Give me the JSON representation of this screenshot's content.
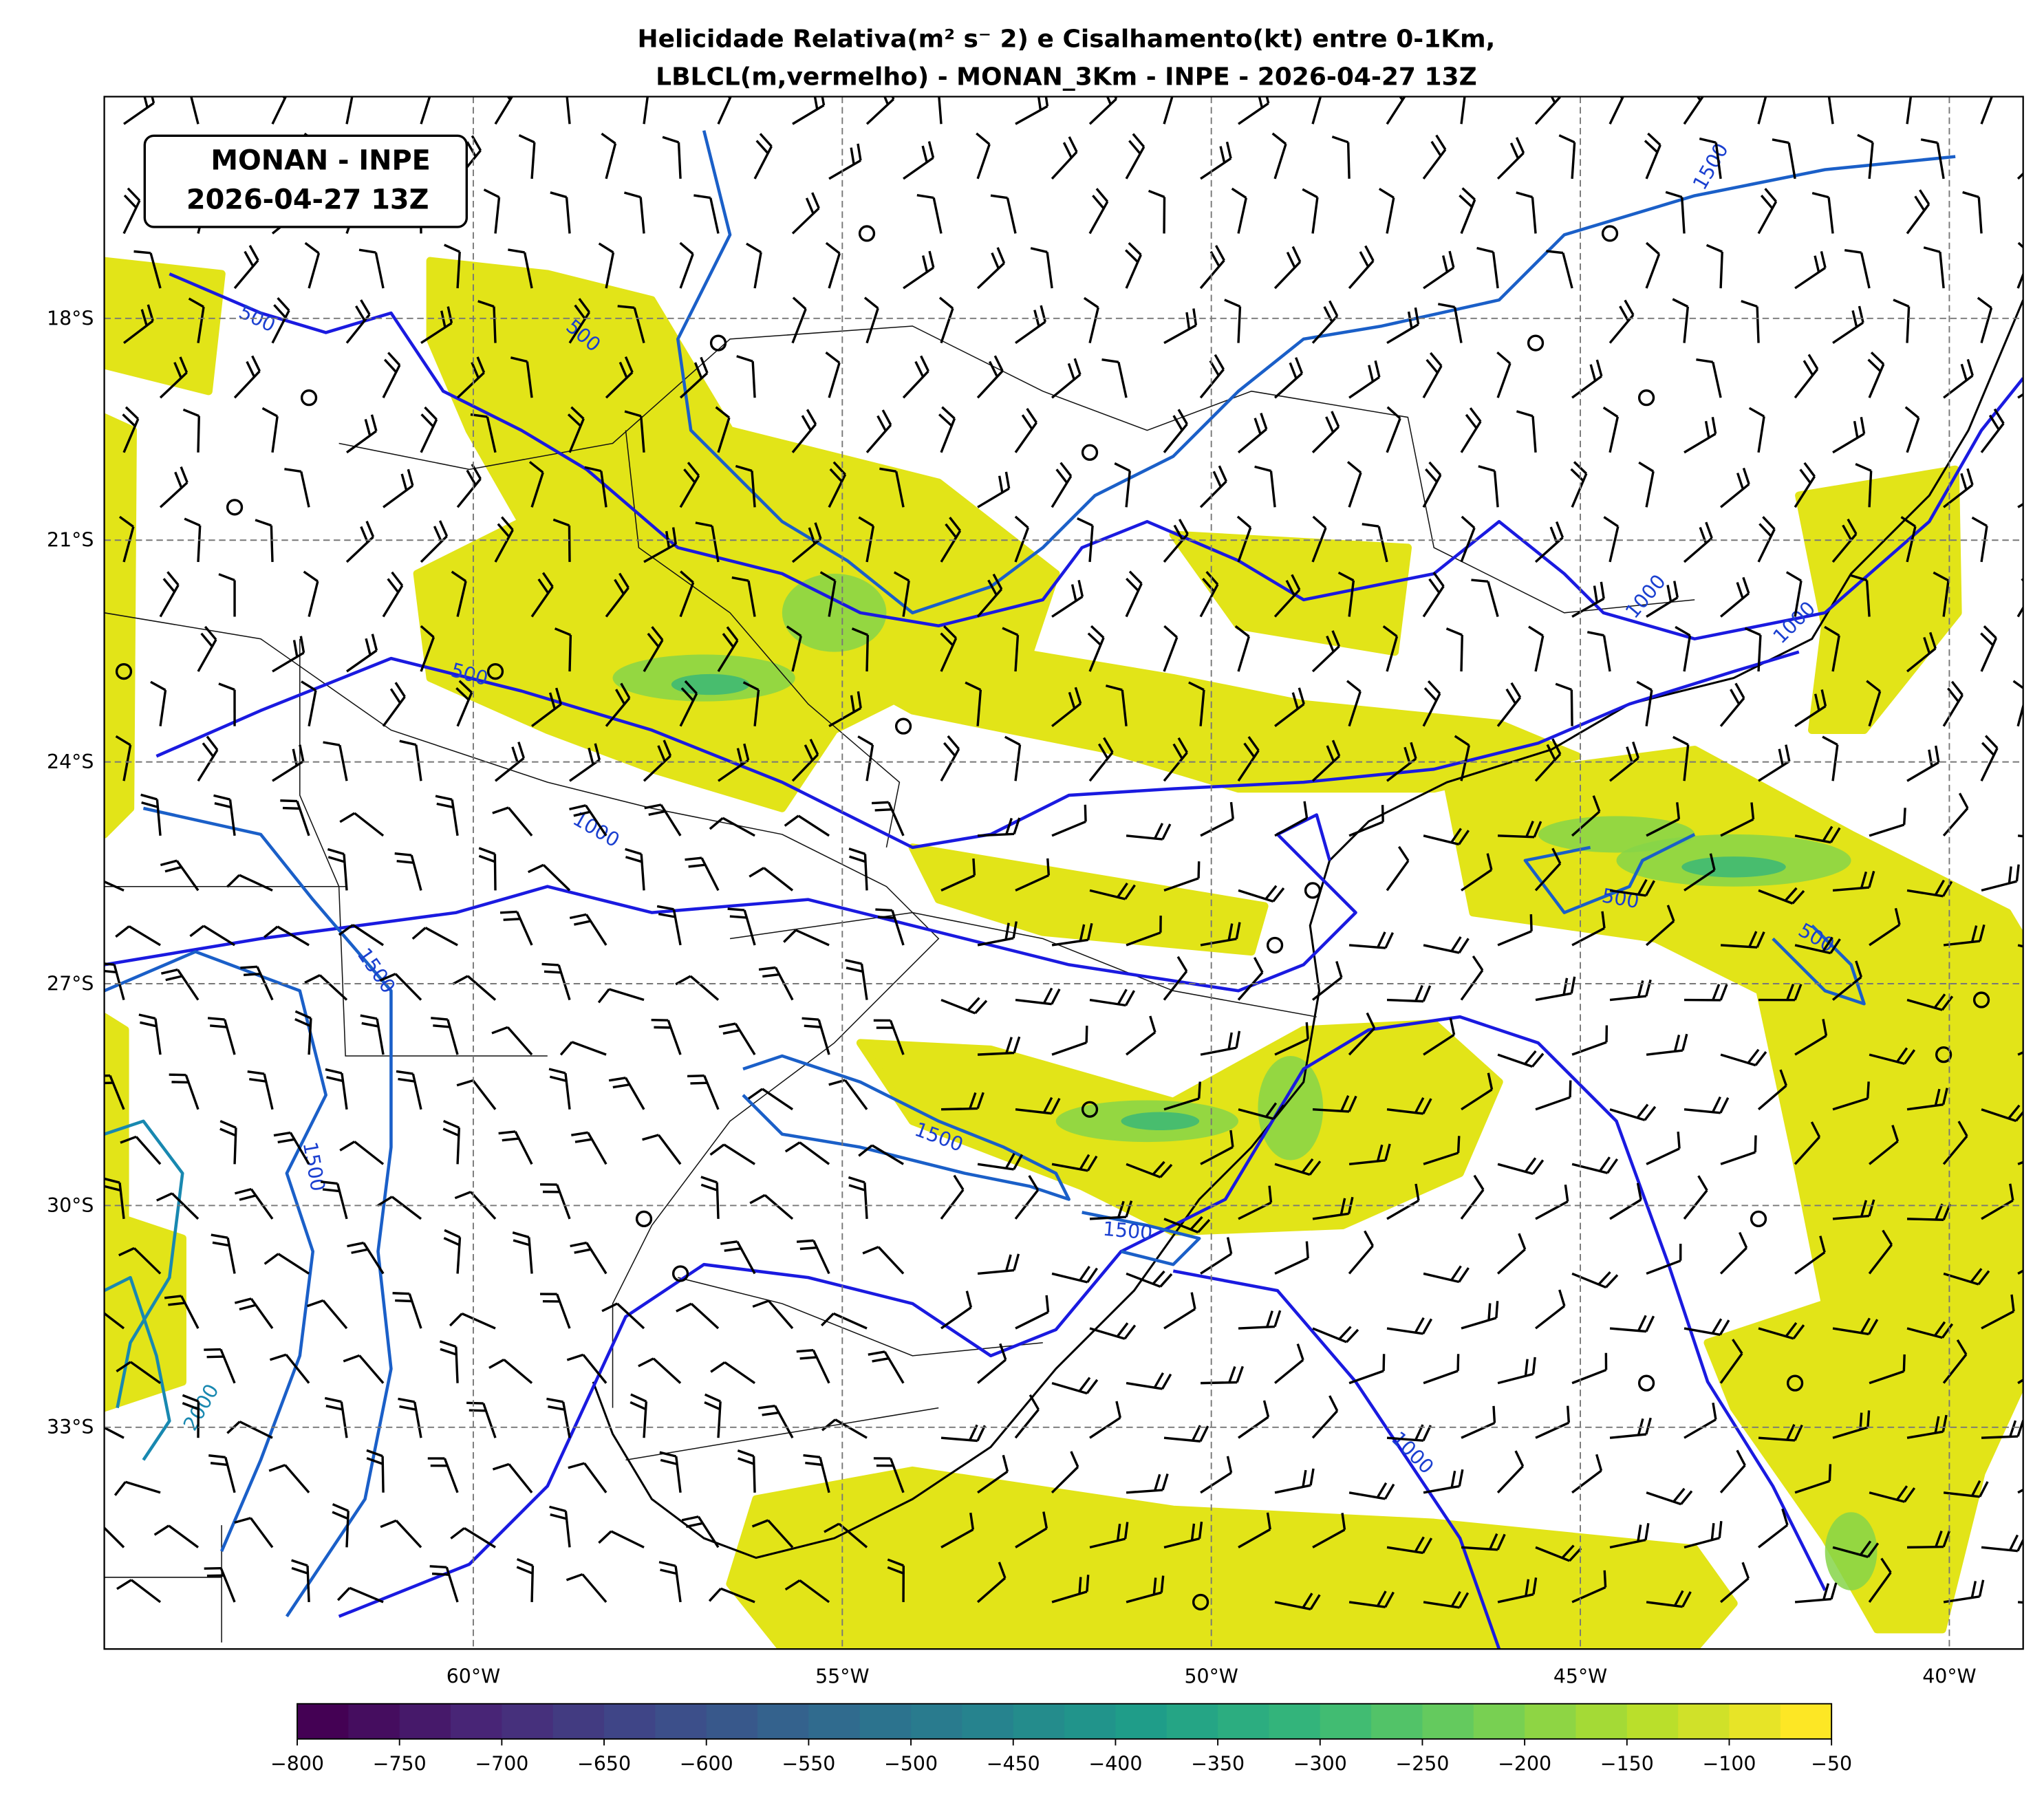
{
  "title": [
    "Helicidade Relativa(m² s⁻ 2) e Cisalhamento(kt) entre 0-1Km,",
    "LBLCL(m,vermelho) - MONAN_3Km - INPE - 2026-04-27 13Z"
  ],
  "annotation": [
    "MONAN - INPE",
    "2026-04-27 13Z"
  ],
  "map": {
    "xlim": [
      -65,
      -39
    ],
    "ylim": [
      -36,
      -15
    ],
    "xticks": [
      {
        "value": -60,
        "label": "60°W"
      },
      {
        "value": -55,
        "label": "55°W"
      },
      {
        "value": -50,
        "label": "50°W"
      },
      {
        "value": -45,
        "label": "45°W"
      },
      {
        "value": -40,
        "label": "40°W"
      }
    ],
    "yticks": [
      {
        "value": -18,
        "label": "18°S"
      },
      {
        "value": -21,
        "label": "21°S"
      },
      {
        "value": -24,
        "label": "24°S"
      },
      {
        "value": -27,
        "label": "27°S"
      },
      {
        "value": -30,
        "label": "30°S"
      },
      {
        "value": -33,
        "label": "33°S"
      }
    ]
  },
  "colorbar": {
    "range": [
      -800,
      -50
    ],
    "ticks": [
      {
        "value": -800,
        "label": "−800"
      },
      {
        "value": -750,
        "label": "−750"
      },
      {
        "value": -700,
        "label": "−700"
      },
      {
        "value": -650,
        "label": "−650"
      },
      {
        "value": -600,
        "label": "−600"
      },
      {
        "value": -550,
        "label": "−550"
      },
      {
        "value": -500,
        "label": "−500"
      },
      {
        "value": -450,
        "label": "−450"
      },
      {
        "value": -400,
        "label": "−400"
      },
      {
        "value": -350,
        "label": "−350"
      },
      {
        "value": -300,
        "label": "−300"
      },
      {
        "value": -250,
        "label": "−250"
      },
      {
        "value": -200,
        "label": "−200"
      },
      {
        "value": -150,
        "label": "−150"
      },
      {
        "value": -100,
        "label": "−100"
      },
      {
        "value": -50,
        "label": "−50"
      }
    ]
  },
  "contour_labels": [
    500,
    500,
    500,
    500,
    500,
    1000,
    1000,
    1000,
    1000,
    1500,
    1500,
    1500,
    1500,
    1500,
    2000
  ]
}
